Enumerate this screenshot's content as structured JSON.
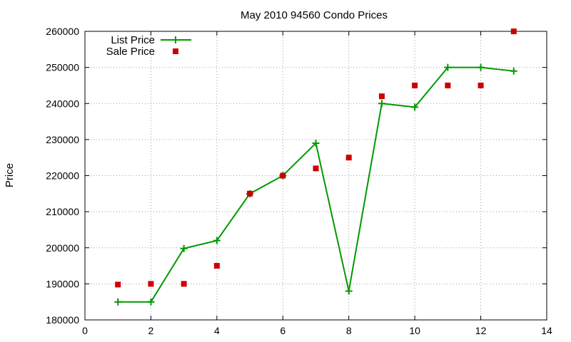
{
  "chart_data": {
    "type": "line",
    "title": "May 2010 94560 Condo Prices",
    "xlabel": "",
    "ylabel": "Price",
    "xlim": [
      0,
      14
    ],
    "ylim": [
      180000,
      260000
    ],
    "x_ticks": [
      0,
      2,
      4,
      6,
      8,
      10,
      12,
      14
    ],
    "y_ticks": [
      180000,
      190000,
      200000,
      210000,
      220000,
      230000,
      240000,
      250000,
      260000
    ],
    "grid": true,
    "legend_position": "top-left",
    "series": [
      {
        "name": "List Price",
        "style": "line-with-plus-markers",
        "color": "#009900",
        "points": [
          [
            1,
            185000
          ],
          [
            2,
            185000
          ],
          [
            3,
            199800
          ],
          [
            4,
            202000
          ],
          [
            5,
            215000
          ],
          [
            6,
            220000
          ],
          [
            7,
            229000
          ],
          [
            8,
            188000
          ],
          [
            9,
            240000
          ],
          [
            10,
            239000
          ],
          [
            11,
            250000
          ],
          [
            12,
            250000
          ],
          [
            13,
            249000
          ]
        ]
      },
      {
        "name": "Sale Price",
        "style": "square-markers",
        "color": "#cc0000",
        "points": [
          [
            1,
            189800
          ],
          [
            2,
            190000
          ],
          [
            3,
            190000
          ],
          [
            4,
            195000
          ],
          [
            5,
            215000
          ],
          [
            6,
            220000
          ],
          [
            7,
            222000
          ],
          [
            8,
            225000
          ],
          [
            9,
            242000
          ],
          [
            10,
            245000
          ],
          [
            11,
            245000
          ],
          [
            12,
            245000
          ],
          [
            13,
            260000
          ]
        ]
      }
    ]
  }
}
